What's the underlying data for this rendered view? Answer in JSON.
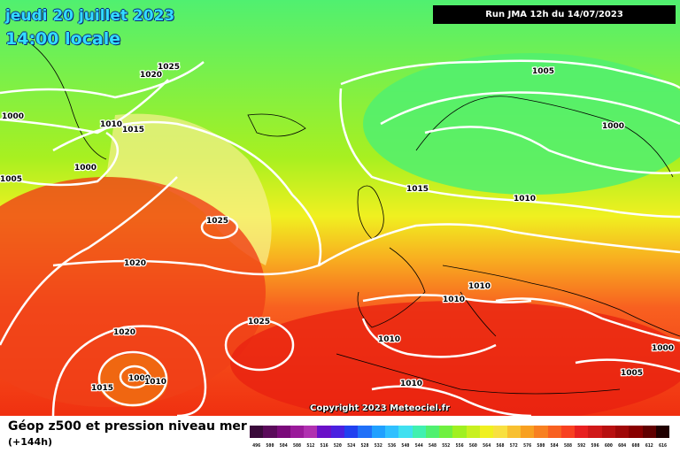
{
  "header": {
    "date_title": "jeudi 20 juillet 2023",
    "local_time": "14:00 locale",
    "run_info": "Run JMA 12h du 14/07/2023"
  },
  "copyright": "Copyright 2023 Meteociel.fr",
  "legend": {
    "title": "Géop z500 et pression niveau mer",
    "subtitle": "(+144h)",
    "scale_values": [
      "496",
      "500",
      "504",
      "508",
      "512",
      "516",
      "520",
      "524",
      "528",
      "532",
      "536",
      "540",
      "544",
      "548",
      "552",
      "556",
      "560",
      "564",
      "568",
      "572",
      "576",
      "580",
      "584",
      "588",
      "592",
      "596",
      "600",
      "604",
      "608",
      "612",
      "616"
    ],
    "scale_colors": [
      "#3a0a3a",
      "#5a0a5a",
      "#7a0a7a",
      "#9a1a9a",
      "#b030b0",
      "#6a10c8",
      "#4a20e0",
      "#2040f0",
      "#2070f8",
      "#20a0ff",
      "#30c0ff",
      "#40e0f0",
      "#40f0b0",
      "#50f070",
      "#70f040",
      "#a0f020",
      "#c8f020",
      "#f0f020",
      "#f8e040",
      "#f8c030",
      "#f8a020",
      "#f88020",
      "#f86020",
      "#f84020",
      "#e82020",
      "#d01818",
      "#b81010",
      "#a00808",
      "#880000",
      "#600000",
      "#200000"
    ]
  },
  "map": {
    "background_colors": {
      "north": "#50f070",
      "mid": "#f0f020",
      "south": "#f84020"
    },
    "isobar_labels": [
      "1025",
      "1020",
      "1000",
      "1010",
      "1015",
      "1000",
      "1005",
      "1025",
      "1020",
      "1025",
      "1020",
      "1000",
      "1010",
      "1015",
      "1005",
      "1000",
      "1015",
      "1010",
      "1010",
      "1010",
      "1010",
      "1010",
      "1000",
      "1005"
    ]
  }
}
